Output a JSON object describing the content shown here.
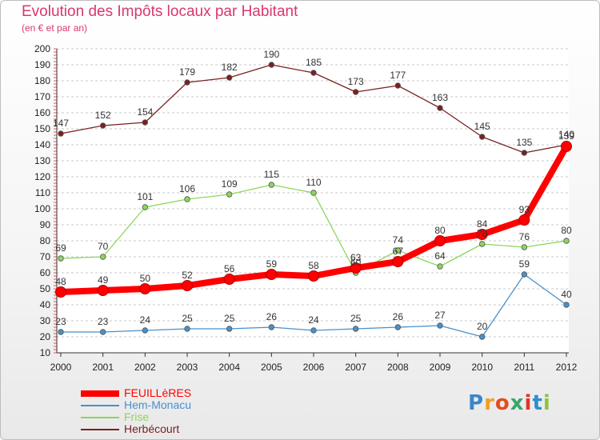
{
  "title": "Evolution des Impôts locaux par Habitant",
  "subtitle": "(en € et par an)",
  "logo": {
    "letters": [
      "P",
      "r",
      "o",
      "x",
      "i",
      "t",
      "i"
    ],
    "colors": [
      "#3d86c9",
      "#f0a021",
      "#e44c1e",
      "#3aa56b",
      "#e0342a",
      "#2b8fd0",
      "#92c13d"
    ]
  },
  "chart_data": {
    "type": "line",
    "title": "Evolution des Impôts locaux par Habitant",
    "subtitle": "(en € et par an)",
    "x": [
      "2000",
      "2001",
      "2002",
      "2003",
      "2004",
      "2005",
      "2006",
      "2007",
      "2008",
      "2009",
      "2010",
      "2011",
      "2012"
    ],
    "yticks": [
      "10",
      "20",
      "30",
      "40",
      "50",
      "60",
      "70",
      "80",
      "90",
      "100",
      "110",
      "120",
      "130",
      "140",
      "150",
      "160",
      "170",
      "180",
      "190",
      "200"
    ],
    "ylim": [
      10,
      200
    ],
    "grid": "horizontal dashed",
    "series": [
      {
        "name": "FEUILLèRES",
        "color": "#ff0000",
        "values": [
          48,
          49,
          50,
          52,
          56,
          59,
          58,
          63,
          67,
          80,
          84,
          93,
          139
        ]
      },
      {
        "name": "Hem-Monacu",
        "color": "#4a90c8",
        "values": [
          23,
          23,
          24,
          25,
          25,
          26,
          24,
          25,
          26,
          27,
          20,
          59,
          40
        ]
      },
      {
        "name": "Frise",
        "color": "#8cd65a",
        "values": [
          69,
          70,
          101,
          106,
          109,
          115,
          110,
          60,
          74,
          64,
          78,
          76,
          80
        ]
      },
      {
        "name": "Herbécourt",
        "color": "#7a2020",
        "values": [
          147,
          152,
          154,
          179,
          182,
          190,
          185,
          173,
          177,
          163,
          145,
          135,
          140
        ]
      }
    ]
  }
}
